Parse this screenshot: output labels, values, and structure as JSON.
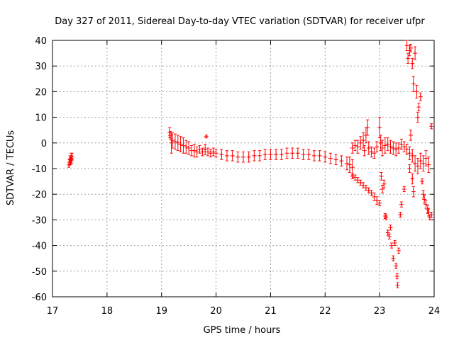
{
  "chart_data": {
    "type": "scatter",
    "title": "Day 327 of 2011, Sidereal Day-to-day VTEC variation (SDTVAR) for receiver ufpr",
    "xlabel": "GPS time / hours",
    "ylabel": "SDTVAR / TECUs",
    "xlim": [
      17,
      24
    ],
    "ylim": [
      -60,
      40
    ],
    "xticks": [
      "17",
      "18",
      "19",
      "20",
      "21",
      "22",
      "23",
      "24"
    ],
    "yticks": [
      "40",
      "30",
      "20",
      "10",
      "0",
      "-10",
      "-20",
      "-30",
      "-40",
      "-50",
      "-60"
    ],
    "grid": true,
    "marker": "+",
    "error_bars": true,
    "color": "#ff0000",
    "series": [
      {
        "name": "SDTVAR",
        "points": [
          [
            17.3,
            -8.5,
            1.0
          ],
          [
            17.31,
            -7.5,
            1.2
          ],
          [
            17.32,
            -6.5,
            1.5
          ],
          [
            17.33,
            -7.0,
            1.5
          ],
          [
            17.34,
            -6.0,
            2.0
          ],
          [
            17.35,
            -6.5,
            1.5
          ],
          [
            17.36,
            -5.5,
            1.5
          ],
          [
            19.15,
            4.0,
            2.0
          ],
          [
            19.16,
            3.0,
            1.5
          ],
          [
            19.18,
            0.0,
            4.0
          ],
          [
            19.2,
            1.0,
            3.0
          ],
          [
            19.25,
            0.5,
            3.0
          ],
          [
            19.3,
            0.0,
            3.0
          ],
          [
            19.35,
            -0.5,
            3.0
          ],
          [
            19.4,
            -1.0,
            3.0
          ],
          [
            19.45,
            -1.5,
            2.5
          ],
          [
            19.5,
            -2.0,
            2.5
          ],
          [
            19.55,
            -3.0,
            2.0
          ],
          [
            19.6,
            -3.0,
            2.5
          ],
          [
            19.65,
            -3.5,
            2.0
          ],
          [
            19.7,
            -2.5,
            1.5
          ],
          [
            19.75,
            -3.5,
            1.5
          ],
          [
            19.8,
            -2.5,
            2.0
          ],
          [
            19.82,
            2.5,
            0.5
          ],
          [
            19.85,
            -3.5,
            1.5
          ],
          [
            19.9,
            -4.0,
            1.5
          ],
          [
            19.95,
            -3.5,
            1.5
          ],
          [
            20.0,
            -4.0,
            1.5
          ],
          [
            20.1,
            -4.5,
            2.0
          ],
          [
            20.2,
            -5.0,
            2.0
          ],
          [
            20.3,
            -5.0,
            2.0
          ],
          [
            20.4,
            -5.5,
            2.0
          ],
          [
            20.5,
            -5.5,
            2.0
          ],
          [
            20.6,
            -5.5,
            2.0
          ],
          [
            20.7,
            -5.0,
            2.0
          ],
          [
            20.8,
            -5.0,
            2.0
          ],
          [
            20.9,
            -4.5,
            2.0
          ],
          [
            21.0,
            -4.5,
            2.0
          ],
          [
            21.1,
            -4.5,
            2.0
          ],
          [
            21.2,
            -4.5,
            2.0
          ],
          [
            21.3,
            -4.0,
            2.0
          ],
          [
            21.4,
            -4.0,
            2.0
          ],
          [
            21.5,
            -4.0,
            2.0
          ],
          [
            21.6,
            -4.5,
            2.0
          ],
          [
            21.7,
            -4.5,
            2.0
          ],
          [
            21.8,
            -5.0,
            2.0
          ],
          [
            21.9,
            -5.0,
            2.0
          ],
          [
            22.0,
            -5.5,
            2.0
          ],
          [
            22.1,
            -6.0,
            2.0
          ],
          [
            22.2,
            -6.5,
            2.0
          ],
          [
            22.3,
            -7.0,
            2.0
          ],
          [
            22.4,
            -8.0,
            2.5
          ],
          [
            22.45,
            -8.5,
            3.0
          ],
          [
            22.5,
            -9.5,
            3.0
          ],
          [
            22.5,
            -13.0,
            1.0
          ],
          [
            22.55,
            -13.5,
            1.0
          ],
          [
            22.6,
            -14.5,
            1.0
          ],
          [
            22.65,
            -15.5,
            1.0
          ],
          [
            22.7,
            -16.5,
            1.0
          ],
          [
            22.75,
            -17.5,
            1.0
          ],
          [
            22.8,
            -18.5,
            1.0
          ],
          [
            22.85,
            -19.5,
            1.0
          ],
          [
            22.9,
            -21.0,
            1.5
          ],
          [
            22.95,
            -22.5,
            1.5
          ],
          [
            23.0,
            -23.5,
            1.0
          ],
          [
            22.5,
            -2.0,
            2.0
          ],
          [
            22.55,
            -1.0,
            2.0
          ],
          [
            22.6,
            -1.5,
            2.5
          ],
          [
            22.65,
            0.0,
            2.5
          ],
          [
            22.7,
            1.0,
            3.0
          ],
          [
            22.72,
            -3.0,
            2.0
          ],
          [
            22.75,
            3.0,
            3.0
          ],
          [
            22.78,
            6.0,
            3.0
          ],
          [
            22.8,
            -2.0,
            2.5
          ],
          [
            22.85,
            -3.5,
            2.0
          ],
          [
            22.9,
            -4.0,
            2.0
          ],
          [
            22.95,
            -1.5,
            2.0
          ],
          [
            23.0,
            6.0,
            4.0
          ],
          [
            23.02,
            0.0,
            3.0
          ],
          [
            23.05,
            -2.0,
            3.0
          ],
          [
            23.1,
            -1.0,
            3.0
          ],
          [
            23.15,
            -0.5,
            2.5
          ],
          [
            23.2,
            -1.5,
            2.5
          ],
          [
            23.25,
            -2.0,
            2.5
          ],
          [
            23.3,
            -2.5,
            2.5
          ],
          [
            23.35,
            -2.0,
            2.0
          ],
          [
            23.4,
            -0.5,
            2.0
          ],
          [
            23.45,
            -1.5,
            2.0
          ],
          [
            23.5,
            -2.5,
            2.0
          ],
          [
            23.55,
            -4.0,
            2.5
          ],
          [
            23.57,
            3.0,
            2.0
          ],
          [
            23.6,
            -5.0,
            2.5
          ],
          [
            23.65,
            -8.0,
            3.0
          ],
          [
            23.7,
            -9.0,
            3.0
          ],
          [
            23.75,
            -7.0,
            3.0
          ],
          [
            23.8,
            -8.0,
            3.0
          ],
          [
            23.85,
            -6.0,
            3.0
          ],
          [
            23.9,
            -8.5,
            3.0
          ],
          [
            23.95,
            6.5,
            1.0
          ],
          [
            23.03,
            -13.0,
            1.5
          ],
          [
            23.05,
            -18.0,
            1.5
          ],
          [
            23.08,
            -16.0,
            1.5
          ],
          [
            23.1,
            -28.5,
            1.0
          ],
          [
            23.12,
            -29.0,
            1.0
          ],
          [
            23.15,
            -35.0,
            1.0
          ],
          [
            23.18,
            -36.5,
            1.0
          ],
          [
            23.2,
            -33.0,
            1.0
          ],
          [
            23.22,
            -40.0,
            1.0
          ],
          [
            23.25,
            -45.0,
            1.0
          ],
          [
            23.28,
            -39.0,
            1.0
          ],
          [
            23.3,
            -48.0,
            1.0
          ],
          [
            23.32,
            -52.0,
            1.0
          ],
          [
            23.33,
            -55.5,
            1.0
          ],
          [
            23.35,
            -42.0,
            1.0
          ],
          [
            23.38,
            -28.0,
            1.0
          ],
          [
            23.4,
            -24.0,
            1.0
          ],
          [
            23.45,
            -18.0,
            1.0
          ],
          [
            23.5,
            38.0,
            2.0
          ],
          [
            23.52,
            33.0,
            2.0
          ],
          [
            23.55,
            36.0,
            2.0
          ],
          [
            23.57,
            37.0,
            1.5
          ],
          [
            23.6,
            31.0,
            2.0
          ],
          [
            23.62,
            23.0,
            3.0
          ],
          [
            23.65,
            35.0,
            2.5
          ],
          [
            23.68,
            20.0,
            2.5
          ],
          [
            23.7,
            10.0,
            2.0
          ],
          [
            23.72,
            14.0,
            1.5
          ],
          [
            23.75,
            18.0,
            1.5
          ],
          [
            23.55,
            -10.0,
            1.5
          ],
          [
            23.6,
            -14.0,
            2.0
          ],
          [
            23.62,
            -19.0,
            2.0
          ],
          [
            23.78,
            -15.0,
            1.0
          ],
          [
            23.8,
            -20.0,
            1.5
          ],
          [
            23.82,
            -22.0,
            1.5
          ],
          [
            23.85,
            -24.0,
            1.5
          ],
          [
            23.88,
            -26.0,
            1.5
          ],
          [
            23.9,
            -27.0,
            1.5
          ],
          [
            23.92,
            -29.0,
            1.0
          ],
          [
            23.95,
            -28.0,
            1.0
          ]
        ]
      }
    ]
  }
}
